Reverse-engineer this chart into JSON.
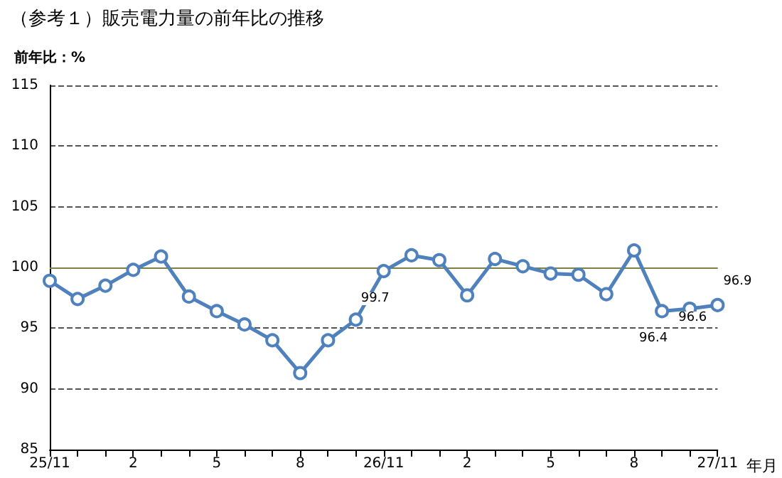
{
  "chart_data": {
    "type": "line",
    "title": "（参考１）販売電力量の前年比の推移",
    "ylabel": "前年比：%",
    "xlabel": "年月",
    "categories": [
      "25/11",
      null,
      null,
      "2",
      null,
      null,
      "5",
      null,
      null,
      "8",
      null,
      null,
      "26/11",
      null,
      null,
      "2",
      null,
      null,
      "5",
      null,
      null,
      "8",
      null,
      null,
      "27/11"
    ],
    "series": [
      {
        "color": "#4f81bd",
        "values": [
          98.9,
          97.4,
          98.5,
          99.8,
          100.9,
          97.6,
          96.4,
          95.3,
          94.0,
          91.3,
          94.0,
          95.7,
          99.7,
          101.0,
          100.6,
          97.7,
          100.7,
          100.1,
          99.5,
          99.4,
          97.8,
          101.4,
          96.4,
          96.6,
          96.9
        ],
        "value_labels": [
          null,
          null,
          null,
          null,
          null,
          null,
          null,
          null,
          null,
          null,
          null,
          null,
          "99.7",
          null,
          null,
          null,
          null,
          null,
          null,
          null,
          null,
          null,
          "96.4",
          "96.6",
          "96.9"
        ]
      }
    ],
    "ylim": [
      85,
      115
    ],
    "yticks": [
      85,
      90,
      95,
      100,
      105,
      110,
      115
    ],
    "grid": "y",
    "marker": "circle",
    "line_style": "solid",
    "ref_lines": [
      {
        "axis": "y",
        "value": 100,
        "color": "#7f7f3f",
        "line_style": "solid"
      }
    ]
  }
}
